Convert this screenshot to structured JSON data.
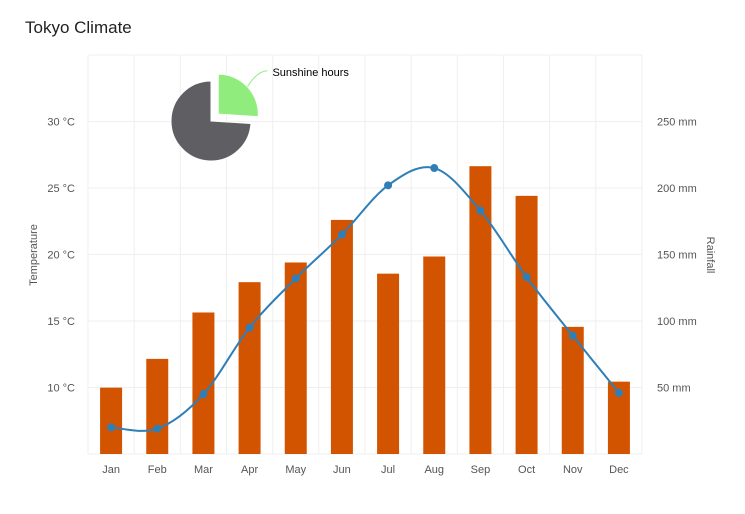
{
  "chart_data": {
    "type": "bar+line+pie",
    "title": "Tokyo Climate",
    "categories": [
      "Jan",
      "Feb",
      "Mar",
      "Apr",
      "May",
      "Jun",
      "Jul",
      "Aug",
      "Sep",
      "Oct",
      "Nov",
      "Dec"
    ],
    "series": [
      {
        "name": "Rainfall",
        "type": "bar",
        "axis": "right",
        "color": "#d35400",
        "values": [
          49.9,
          71.5,
          106.4,
          129.2,
          144.0,
          176.0,
          135.6,
          148.5,
          216.4,
          194.1,
          95.6,
          54.4
        ]
      },
      {
        "name": "Temperature",
        "type": "line",
        "axis": "left",
        "color": "#2e7fb8",
        "values": [
          7.0,
          6.9,
          9.5,
          14.5,
          18.2,
          21.5,
          25.2,
          26.5,
          23.3,
          18.3,
          13.9,
          9.6
        ]
      }
    ],
    "pie": {
      "slices": [
        {
          "name": "Sunshine hours",
          "value": 0.26,
          "color": "#90ed7d",
          "label": "Sunshine hours"
        },
        {
          "name": "",
          "value": 0.74,
          "color": "#5f5e63"
        }
      ]
    },
    "left_axis": {
      "label": "Temperature",
      "range": [
        5,
        35
      ],
      "ticks": [
        10,
        15,
        20,
        25,
        30
      ],
      "tick_labels": [
        "10 °C",
        "15 °C",
        "20 °C",
        "25 °C",
        "30 °C"
      ]
    },
    "right_axis": {
      "label": "Rainfall",
      "range": [
        0,
        300
      ],
      "ticks": [
        50,
        100,
        150,
        200,
        250
      ],
      "tick_labels": [
        "50 mm",
        "100 mm",
        "150 mm",
        "200 mm",
        "250 mm"
      ]
    },
    "grid": true
  }
}
